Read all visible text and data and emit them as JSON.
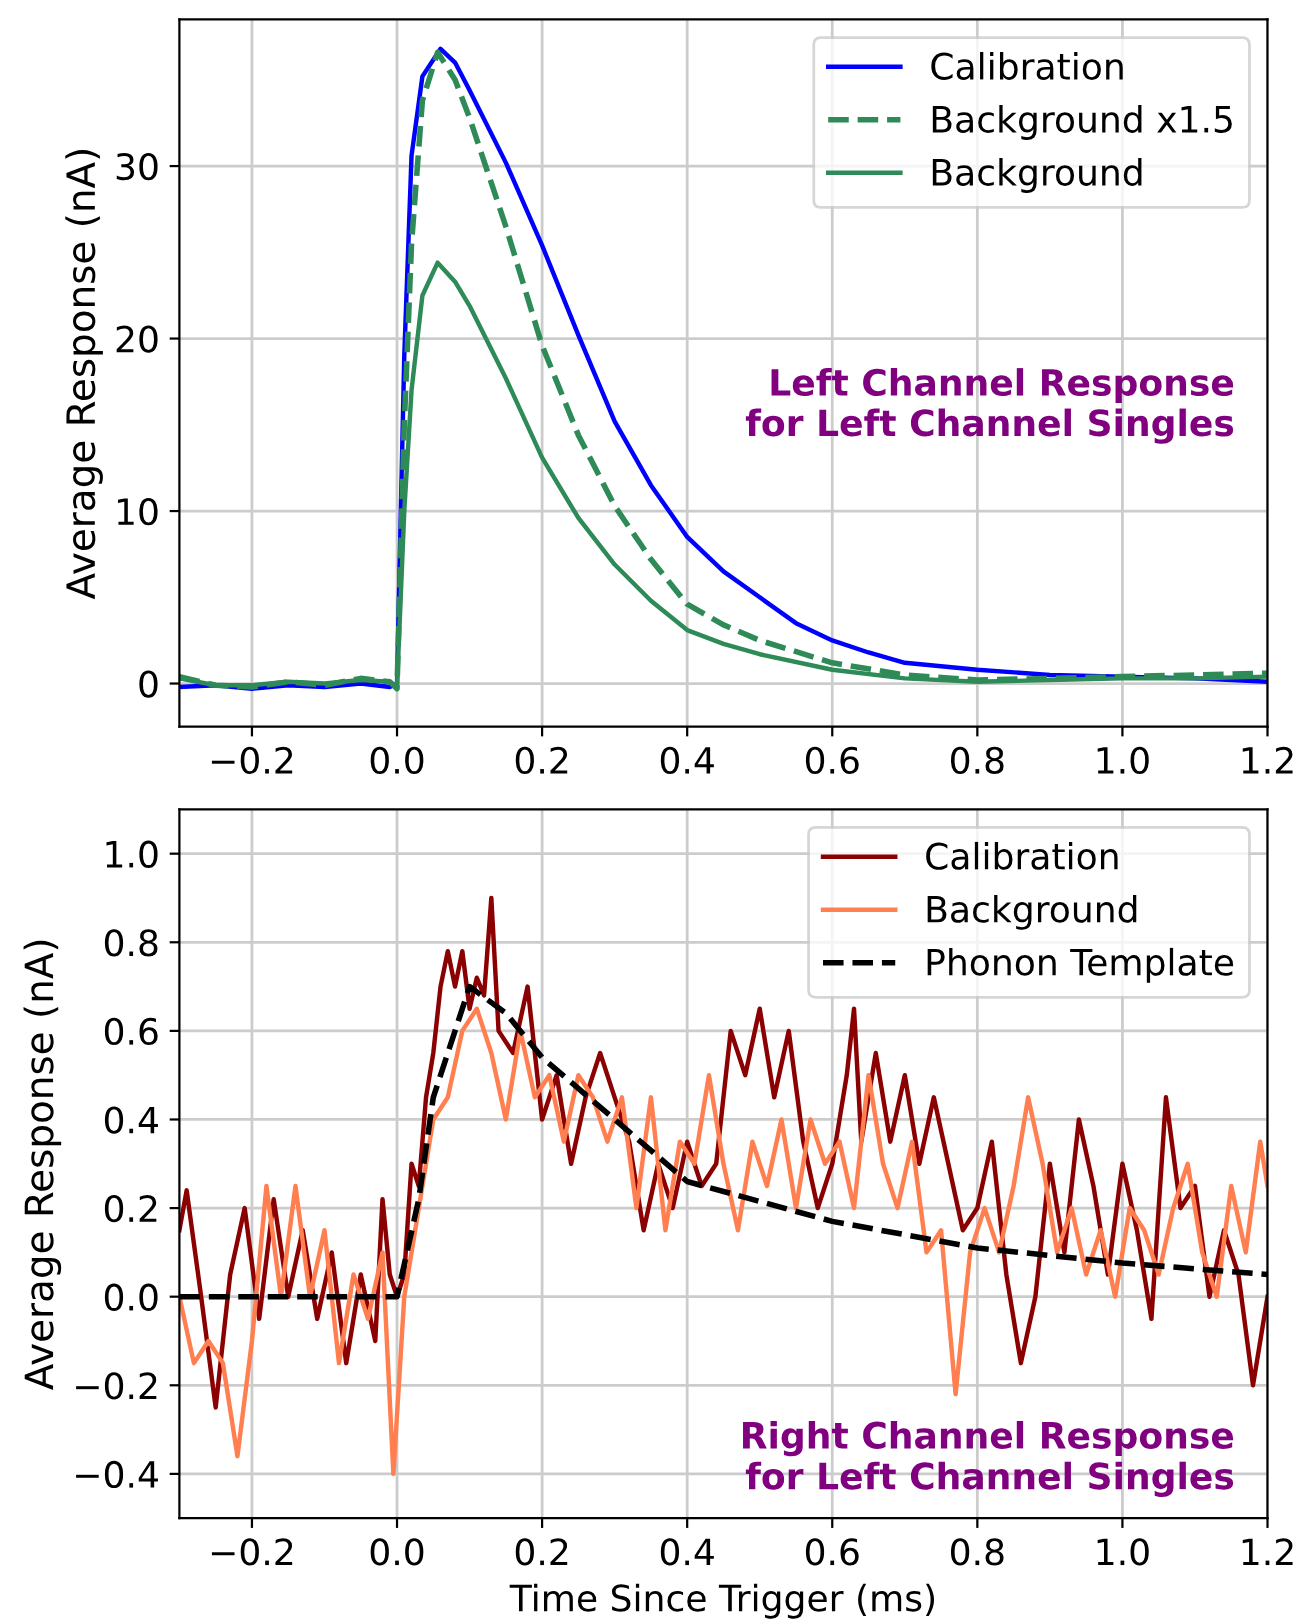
{
  "chart_data": [
    {
      "type": "line",
      "ylabel": "Average Response (nA)",
      "xlim": [
        -0.3,
        1.2
      ],
      "ylim": [
        -2.5,
        38.5
      ],
      "xticks": [
        {
          "value": -0.2,
          "label": "−0.2"
        },
        {
          "value": 0,
          "label": "0.0"
        },
        0.2,
        0.4,
        0.6,
        0.8,
        {
          "value": 1,
          "label": "1.0"
        },
        1.2
      ],
      "yticks": [
        0,
        10,
        20,
        30
      ],
      "grid": true,
      "legend": "top right",
      "annotations": [
        "Left Channel Response\nfor Left Channel Singles"
      ],
      "series": [
        {
          "name": "Calibration",
          "color": "#0000ff",
          "line_style": "solid",
          "x": [
            -0.3,
            -0.25,
            -0.2,
            -0.15,
            -0.1,
            -0.05,
            -0.01,
            0.0,
            0.01,
            0.02,
            0.035,
            0.06,
            0.08,
            0.1,
            0.15,
            0.2,
            0.25,
            0.3,
            0.35,
            0.4,
            0.45,
            0.5,
            0.55,
            0.6,
            0.65,
            0.7,
            0.8,
            0.9,
            1.0,
            1.1,
            1.2
          ],
          "values": [
            -0.2,
            -0.1,
            -0.3,
            -0.1,
            -0.2,
            0.0,
            -0.2,
            0.0,
            19,
            30.6,
            35.2,
            36.8,
            36,
            34.4,
            30.2,
            25.4,
            20.2,
            15.2,
            11.5,
            8.5,
            6.5,
            5.0,
            3.5,
            2.5,
            1.8,
            1.2,
            0.8,
            0.5,
            0.4,
            0.3,
            0.1
          ]
        },
        {
          "name": "Background x1.5",
          "color": "#2e8b57",
          "line_style": "dashed",
          "x": [
            -0.3,
            -0.25,
            -0.2,
            -0.15,
            -0.1,
            -0.05,
            -0.01,
            0.0,
            0.01,
            0.02,
            0.035,
            0.056,
            0.08,
            0.1,
            0.15,
            0.2,
            0.25,
            0.3,
            0.35,
            0.4,
            0.45,
            0.5,
            0.6,
            0.7,
            0.8,
            0.9,
            1.0,
            1.1,
            1.2
          ],
          "values": [
            0.4,
            -0.1,
            -0.2,
            0.1,
            -0.1,
            0.3,
            0.1,
            -0.3,
            15,
            25.5,
            33.8,
            36.6,
            35,
            32.8,
            26.5,
            19.6,
            14.4,
            10.3,
            7.2,
            4.6,
            3.4,
            2.5,
            1.2,
            0.5,
            0.2,
            0.3,
            0.4,
            0.5,
            0.6
          ]
        },
        {
          "name": "Background",
          "color": "#2e8b57",
          "line_style": "solid",
          "x": [
            -0.3,
            -0.25,
            -0.2,
            -0.15,
            -0.1,
            -0.05,
            -0.01,
            0.0,
            0.01,
            0.02,
            0.035,
            0.056,
            0.08,
            0.1,
            0.15,
            0.2,
            0.25,
            0.3,
            0.35,
            0.4,
            0.45,
            0.5,
            0.6,
            0.7,
            0.8,
            0.9,
            1.0,
            1.1,
            1.2
          ],
          "values": [
            0.3,
            -0.1,
            -0.1,
            0.1,
            0.0,
            0.2,
            0.1,
            -0.2,
            10,
            17,
            22.5,
            24.4,
            23.3,
            21.9,
            17.7,
            13.1,
            9.6,
            6.9,
            4.8,
            3.1,
            2.3,
            1.7,
            0.8,
            0.3,
            0.1,
            0.2,
            0.3,
            0.3,
            0.4
          ]
        }
      ]
    },
    {
      "type": "line",
      "xlabel": "Time Since Trigger (ms)",
      "ylabel": "Average Response (nA)",
      "xlim": [
        -0.3,
        1.2
      ],
      "ylim": [
        -0.5,
        1.1
      ],
      "xticks": [
        {
          "value": -0.2,
          "label": "−0.2"
        },
        {
          "value": 0,
          "label": "0.0"
        },
        0.2,
        0.4,
        0.6,
        0.8,
        {
          "value": 1,
          "label": "1.0"
        },
        1.2
      ],
      "yticks": [
        {
          "value": -0.4,
          "label": "−0.4"
        },
        {
          "value": -0.2,
          "label": "−0.2"
        },
        {
          "value": 0,
          "label": "0.0"
        },
        0.2,
        0.4,
        0.6,
        0.8,
        {
          "value": 1,
          "label": "1.0"
        }
      ],
      "grid": true,
      "legend": "top right",
      "annotations": [
        "Right Channel Response\nfor Left Channel Singles"
      ],
      "series": [
        {
          "name": "Calibration",
          "color": "#8b0000",
          "line_style": "solid",
          "x": [
            -0.3,
            -0.29,
            -0.27,
            -0.25,
            -0.23,
            -0.21,
            -0.19,
            -0.17,
            -0.15,
            -0.13,
            -0.11,
            -0.09,
            -0.07,
            -0.05,
            -0.03,
            -0.02,
            -0.01,
            0.0,
            0.01,
            0.02,
            0.03,
            0.04,
            0.05,
            0.06,
            0.07,
            0.08,
            0.09,
            0.1,
            0.11,
            0.12,
            0.13,
            0.14,
            0.16,
            0.18,
            0.2,
            0.22,
            0.24,
            0.26,
            0.28,
            0.3,
            0.32,
            0.34,
            0.36,
            0.38,
            0.4,
            0.42,
            0.44,
            0.46,
            0.48,
            0.5,
            0.52,
            0.54,
            0.56,
            0.58,
            0.6,
            0.62,
            0.63,
            0.64,
            0.66,
            0.68,
            0.7,
            0.72,
            0.74,
            0.76,
            0.78,
            0.8,
            0.82,
            0.84,
            0.86,
            0.88,
            0.9,
            0.92,
            0.94,
            0.96,
            0.98,
            1.0,
            1.02,
            1.04,
            1.06,
            1.08,
            1.1,
            1.12,
            1.14,
            1.16,
            1.18,
            1.2
          ],
          "values": [
            0.15,
            0.24,
            0.0,
            -0.25,
            0.05,
            0.2,
            -0.05,
            0.22,
            0.0,
            0.15,
            -0.05,
            0.1,
            -0.15,
            0.05,
            -0.1,
            0.22,
            0.05,
            0.0,
            0.05,
            0.3,
            0.25,
            0.45,
            0.55,
            0.7,
            0.78,
            0.7,
            0.78,
            0.65,
            0.72,
            0.68,
            0.9,
            0.6,
            0.55,
            0.7,
            0.4,
            0.5,
            0.3,
            0.45,
            0.55,
            0.45,
            0.35,
            0.15,
            0.3,
            0.2,
            0.35,
            0.25,
            0.3,
            0.6,
            0.5,
            0.65,
            0.45,
            0.6,
            0.35,
            0.2,
            0.3,
            0.5,
            0.65,
            0.35,
            0.55,
            0.35,
            0.5,
            0.3,
            0.45,
            0.3,
            0.15,
            0.2,
            0.35,
            0.05,
            -0.15,
            0.0,
            0.3,
            0.1,
            0.4,
            0.25,
            0.05,
            0.3,
            0.15,
            -0.05,
            0.45,
            0.2,
            0.25,
            0.0,
            0.15,
            0.05,
            -0.2,
            0.0
          ]
        },
        {
          "name": "Background",
          "color": "#ff7f50",
          "line_style": "solid",
          "x": [
            -0.3,
            -0.28,
            -0.26,
            -0.24,
            -0.22,
            -0.2,
            -0.18,
            -0.16,
            -0.14,
            -0.12,
            -0.1,
            -0.08,
            -0.06,
            -0.04,
            -0.02,
            -0.005,
            0.01,
            0.03,
            0.05,
            0.07,
            0.09,
            0.11,
            0.13,
            0.15,
            0.17,
            0.19,
            0.21,
            0.23,
            0.25,
            0.27,
            0.29,
            0.31,
            0.33,
            0.35,
            0.37,
            0.39,
            0.41,
            0.43,
            0.45,
            0.47,
            0.49,
            0.51,
            0.53,
            0.55,
            0.57,
            0.59,
            0.61,
            0.63,
            0.65,
            0.67,
            0.69,
            0.71,
            0.73,
            0.75,
            0.77,
            0.79,
            0.81,
            0.83,
            0.85,
            0.87,
            0.89,
            0.91,
            0.93,
            0.95,
            0.97,
            0.99,
            1.01,
            1.03,
            1.05,
            1.07,
            1.09,
            1.11,
            1.13,
            1.15,
            1.17,
            1.19,
            1.2
          ],
          "values": [
            0.0,
            -0.15,
            -0.1,
            -0.15,
            -0.36,
            -0.1,
            0.25,
            0.0,
            0.25,
            0.0,
            0.15,
            -0.15,
            0.05,
            -0.05,
            0.1,
            -0.4,
            0.0,
            0.2,
            0.4,
            0.45,
            0.6,
            0.65,
            0.55,
            0.4,
            0.6,
            0.45,
            0.5,
            0.35,
            0.5,
            0.45,
            0.35,
            0.45,
            0.2,
            0.45,
            0.15,
            0.35,
            0.3,
            0.5,
            0.3,
            0.15,
            0.35,
            0.25,
            0.4,
            0.2,
            0.4,
            0.3,
            0.35,
            0.2,
            0.5,
            0.3,
            0.2,
            0.35,
            0.1,
            0.15,
            -0.22,
            0.1,
            0.2,
            0.1,
            0.25,
            0.45,
            0.3,
            0.1,
            0.2,
            0.05,
            0.15,
            0.0,
            0.2,
            0.15,
            0.05,
            0.2,
            0.3,
            0.1,
            0.0,
            0.25,
            0.1,
            0.35,
            0.25
          ]
        },
        {
          "name": "Phonon Template",
          "color": "#000000",
          "line_style": "dashed",
          "x": [
            -0.3,
            0.0,
            0.03,
            0.05,
            0.1,
            0.15,
            0.2,
            0.3,
            0.4,
            0.6,
            0.8,
            1.0,
            1.2
          ],
          "values": [
            0.0,
            0.0,
            0.22,
            0.45,
            0.7,
            0.64,
            0.54,
            0.4,
            0.26,
            0.17,
            0.11,
            0.076,
            0.05
          ]
        }
      ]
    }
  ]
}
